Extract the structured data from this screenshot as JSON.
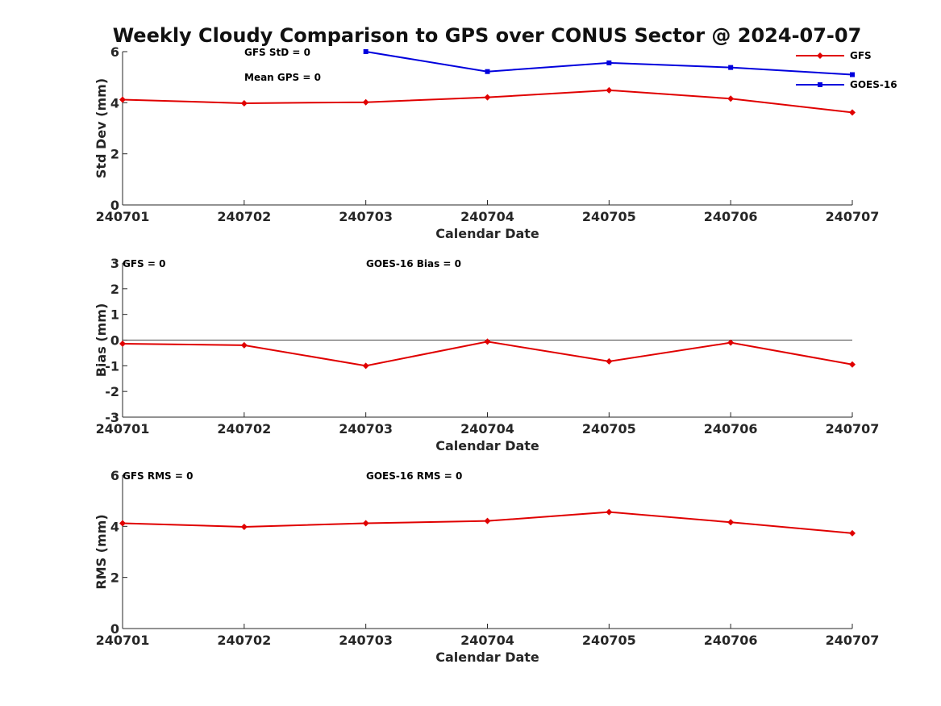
{
  "title": "Weekly Cloudy Comparison to GPS over CONUS Sector @ 2024-07-07",
  "colors": {
    "GFS": "#e00000",
    "GOES-16": "#0000dd",
    "zero_line": "#444444"
  },
  "chart_data": [
    {
      "type": "line",
      "panel": "std",
      "categories": [
        "240701",
        "240702",
        "240703",
        "240704",
        "240705",
        "240706",
        "240707"
      ],
      "xlabel": "Calendar Date",
      "ylabel": "Std Dev (mm)",
      "ylim": [
        0,
        6
      ],
      "yticks": [
        "0",
        "2",
        "4",
        "6"
      ],
      "annotations": [
        "GFS StD = 0",
        "Mean GPS = 0"
      ],
      "legend": {
        "position": "top-right",
        "entries": [
          "GFS",
          "GOES-16"
        ]
      },
      "series": [
        {
          "name": "GFS",
          "marker": "diamond",
          "values": [
            4.12,
            3.98,
            4.02,
            4.21,
            4.49,
            4.16,
            3.62
          ]
        },
        {
          "name": "GOES-16",
          "marker": "square",
          "values": [
            null,
            null,
            6.0,
            5.22,
            5.56,
            5.38,
            5.1
          ]
        }
      ]
    },
    {
      "type": "line",
      "panel": "bias",
      "categories": [
        "240701",
        "240702",
        "240703",
        "240704",
        "240705",
        "240706",
        "240707"
      ],
      "xlabel": "Calendar Date",
      "ylabel": "Bias (mm)",
      "ylim": [
        -3,
        3
      ],
      "yticks": [
        "-3",
        "-2",
        "-1",
        "0",
        "1",
        "2",
        "3"
      ],
      "zero_line": true,
      "annotations": [
        "GFS = 0",
        "GOES-16 Bias  = 0"
      ],
      "series": [
        {
          "name": "GFS",
          "marker": "diamond",
          "values": [
            -0.14,
            -0.2,
            -1.0,
            -0.06,
            -0.83,
            -0.1,
            -0.95
          ]
        }
      ]
    },
    {
      "type": "line",
      "panel": "rms",
      "categories": [
        "240701",
        "240702",
        "240703",
        "240704",
        "240705",
        "240706",
        "240707"
      ],
      "xlabel": "Calendar Date",
      "ylabel": "RMS (mm)",
      "ylim": [
        0,
        6
      ],
      "yticks": [
        "0",
        "2",
        "4",
        "6"
      ],
      "annotations": [
        "GFS RMS = 0",
        "GOES-16 RMS = 0"
      ],
      "series": [
        {
          "name": "GFS",
          "marker": "diamond",
          "values": [
            4.12,
            3.98,
            4.12,
            4.21,
            4.56,
            4.16,
            3.73
          ]
        }
      ]
    }
  ]
}
